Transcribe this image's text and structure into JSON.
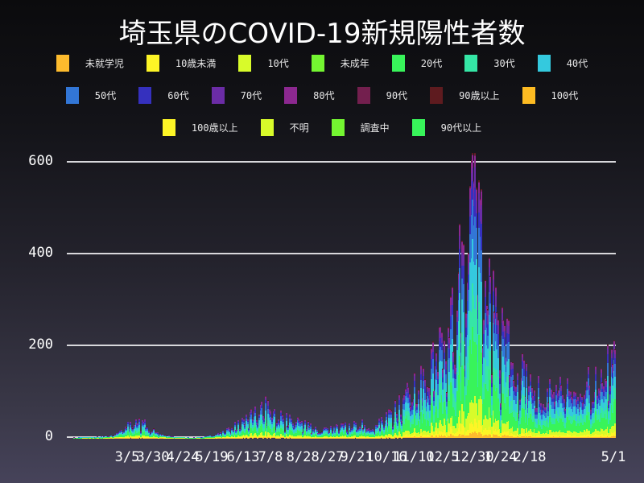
{
  "title": "埼玉県のCOVID-19新規陽性者数",
  "legend": {
    "rows": [
      [
        {
          "label": "未就学児",
          "color": "#fdbb2d"
        },
        {
          "label": "10歳未満",
          "color": "#fdf526"
        },
        {
          "label": "10代",
          "color": "#d8fb2a"
        },
        {
          "label": "未成年",
          "color": "#74f631"
        },
        {
          "label": "20代",
          "color": "#38f45a"
        },
        {
          "label": "30代",
          "color": "#35e6a6"
        },
        {
          "label": "40代",
          "color": "#34c9de"
        }
      ],
      [
        {
          "label": "50代",
          "color": "#3276d6"
        },
        {
          "label": "60代",
          "color": "#3530be"
        },
        {
          "label": "70代",
          "color": "#6b2ca6"
        },
        {
          "label": "80代",
          "color": "#8c2890"
        },
        {
          "label": "90代",
          "color": "#731f4e"
        },
        {
          "label": "90歳以上",
          "color": "#5e1b1f"
        },
        {
          "label": "100代",
          "color": "#fdbb22"
        }
      ],
      [
        {
          "label": "100歳以上",
          "color": "#fdf526"
        },
        {
          "label": "不明",
          "color": "#d8fb2a"
        },
        {
          "label": "調査中",
          "color": "#74f631"
        },
        {
          "label": "90代以上",
          "color": "#38f45a"
        }
      ]
    ]
  },
  "axes": {
    "y_ticks": [
      "0",
      "200",
      "400",
      "600"
    ],
    "x_ticks": [
      "3/5",
      "3/30",
      "4/24",
      "5/19",
      "6/13",
      "7/8",
      "8/2",
      "8/27",
      "9/21",
      "10/16",
      "11/10",
      "12/5",
      "12/30",
      "1/24",
      "2/18",
      "5/1"
    ]
  },
  "chart_data": {
    "type": "bar",
    "stacked": true,
    "title": "埼玉県のCOVID-19新規陽性者数",
    "xlabel": "",
    "ylabel": "",
    "ylim": [
      0,
      600
    ],
    "grid": true,
    "legend_position": "top",
    "x_start": "2020-03-01",
    "x_end": "2021-05-01",
    "x_tick_labels": [
      "3/5",
      "3/30",
      "4/24",
      "5/19",
      "6/13",
      "7/8",
      "8/2",
      "8/27",
      "9/21",
      "10/16",
      "11/10",
      "12/5",
      "12/30",
      "1/24",
      "2/18",
      "5/1"
    ],
    "y_tick_labels": [
      "0",
      "200",
      "400",
      "600"
    ],
    "series_names": [
      "未就学児",
      "10歳未満",
      "10代",
      "未成年",
      "20代",
      "30代",
      "40代",
      "50代",
      "60代",
      "70代",
      "80代",
      "90代",
      "90歳以上",
      "100代",
      "100歳以上",
      "不明",
      "調査中",
      "90代以上"
    ],
    "series_share": [
      0.02,
      0.04,
      0.08,
      0.0,
      0.22,
      0.16,
      0.16,
      0.13,
      0.08,
      0.06,
      0.04,
      0.005,
      0.005,
      0.0,
      0.0,
      0.0,
      0.0,
      0.0
    ],
    "daily_total_envelope": {
      "note": "approximate daily totals sampled every ~7 days from 2020-03-01",
      "values": [
        0,
        1,
        2,
        2,
        3,
        5,
        15,
        35,
        40,
        25,
        12,
        5,
        2,
        2,
        1,
        2,
        5,
        10,
        20,
        35,
        45,
        55,
        70,
        50,
        45,
        40,
        35,
        25,
        15,
        20,
        25,
        30,
        35,
        30,
        25,
        40,
        60,
        80,
        110,
        130,
        150,
        180,
        230,
        290,
        420,
        600,
        480,
        320,
        230,
        200,
        160,
        130,
        110,
        100,
        105,
        110,
        120,
        115,
        130,
        150,
        170,
        200,
        260
      ]
    },
    "peak": {
      "date": "2021-01-09",
      "value": 605
    }
  }
}
